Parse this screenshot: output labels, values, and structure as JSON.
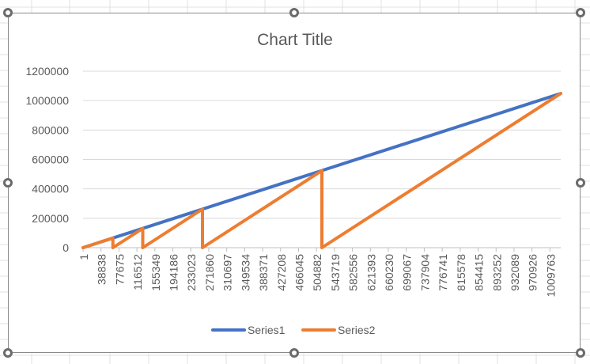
{
  "chart_data": {
    "type": "line",
    "title": "Chart Title",
    "xlabel": "",
    "ylabel": "",
    "ylim": [
      0,
      1200000
    ],
    "y_ticks": [
      0,
      200000,
      400000,
      600000,
      800000,
      1000000,
      1200000
    ],
    "x_tick_labels": [
      "1",
      "38838",
      "77675",
      "116512",
      "155349",
      "194186",
      "233023",
      "271860",
      "310697",
      "349534",
      "388371",
      "427208",
      "466045",
      "504882",
      "543719",
      "582556",
      "621393",
      "660230",
      "699067",
      "737904",
      "776741",
      "815578",
      "854415",
      "893252",
      "932089",
      "970926",
      "1009763"
    ],
    "grid": "horizontal",
    "legend_position": "bottom",
    "series": [
      {
        "name": "Series1",
        "color": "#4472C4",
        "points": [
          [
            1,
            0
          ],
          [
            1048576,
            1048576
          ]
        ]
      },
      {
        "name": "Series2",
        "color": "#ED7D31",
        "points": [
          [
            1,
            0
          ],
          [
            65536,
            65536
          ],
          [
            65537,
            0
          ],
          [
            131072,
            131072
          ],
          [
            131073,
            0
          ],
          [
            262144,
            262144
          ],
          [
            262145,
            0
          ],
          [
            524288,
            524288
          ],
          [
            524289,
            0
          ],
          [
            1048576,
            1048576
          ]
        ]
      }
    ]
  }
}
